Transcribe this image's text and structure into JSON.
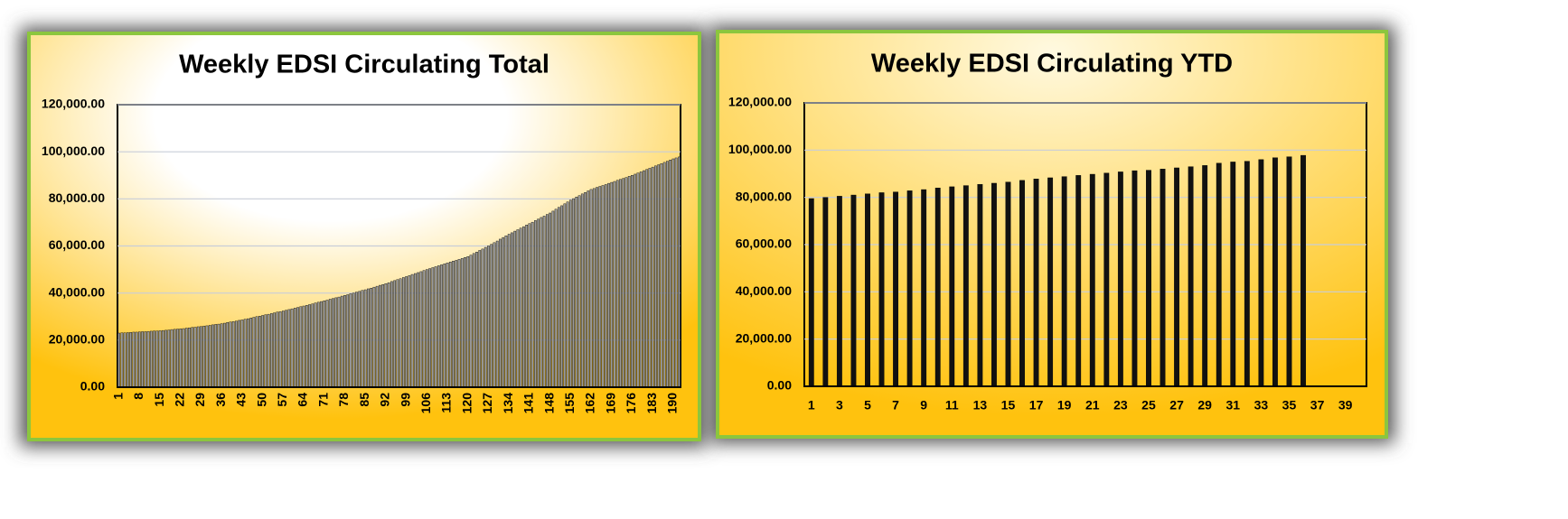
{
  "chart_data": [
    {
      "type": "bar",
      "title": "Weekly EDSI Circulating Total",
      "color": "#9a9a9a",
      "categories": [
        "1",
        null,
        null,
        null,
        null,
        null,
        null,
        "8",
        null,
        null,
        null,
        null,
        null,
        null,
        "15",
        null,
        null,
        null,
        null,
        null,
        null,
        "22",
        null,
        null,
        null,
        null,
        null,
        null,
        "29",
        null,
        null,
        null,
        null,
        null,
        null,
        "36",
        null,
        null,
        null,
        null,
        null,
        null,
        "43",
        null,
        null,
        null,
        null,
        null,
        null,
        "50",
        null,
        null,
        null,
        null,
        null,
        null,
        "57",
        null,
        null,
        null,
        null,
        null,
        null,
        "64",
        null,
        null,
        null,
        null,
        null,
        null,
        "71",
        null,
        null,
        null,
        null,
        null,
        null,
        "78",
        null,
        null,
        null,
        null,
        null,
        null,
        "85",
        null,
        null,
        null,
        null,
        null,
        null,
        "92",
        null,
        null,
        null,
        null,
        null,
        null,
        "99",
        null,
        null,
        null,
        null,
        null,
        null,
        "106",
        null,
        null,
        null,
        null,
        null,
        null,
        "113",
        null,
        null,
        null,
        null,
        null,
        null,
        "120",
        null,
        null,
        null,
        null,
        null,
        null,
        "127",
        null,
        null,
        null,
        null,
        null,
        null,
        "134",
        null,
        null,
        null,
        null,
        null,
        null,
        "141",
        null,
        null,
        null,
        null,
        null,
        null,
        "148",
        null,
        null,
        null,
        null,
        null,
        null,
        "155",
        null,
        null,
        null,
        null,
        null,
        null,
        "162",
        null,
        null,
        null,
        null,
        null,
        null,
        "169",
        null,
        null,
        null,
        null,
        null,
        null,
        "176",
        null,
        null,
        null,
        null,
        null,
        null,
        "183",
        null,
        null,
        null,
        null,
        null,
        null,
        "190",
        null,
        null
      ],
      "values": [
        23000,
        23100,
        23100,
        23200,
        23300,
        23400,
        23400,
        23500,
        23600,
        23600,
        23700,
        23800,
        23900,
        23900,
        24000,
        24100,
        24200,
        24300,
        24500,
        24600,
        24700,
        24800,
        24900,
        25100,
        25200,
        25400,
        25500,
        25700,
        25800,
        26000,
        26100,
        26300,
        26500,
        26700,
        26800,
        27000,
        27200,
        27500,
        27700,
        27900,
        28100,
        28400,
        28600,
        28900,
        29100,
        29400,
        29700,
        30000,
        30200,
        30500,
        30800,
        31000,
        31300,
        31600,
        31900,
        32100,
        32400,
        32700,
        33000,
        33300,
        33600,
        33900,
        34200,
        34500,
        34800,
        35100,
        35400,
        35800,
        36100,
        36400,
        36700,
        37000,
        37400,
        37700,
        38000,
        38300,
        38700,
        39000,
        39300,
        39700,
        40000,
        40400,
        40700,
        41100,
        41400,
        41800,
        42100,
        42500,
        42900,
        43300,
        43600,
        44000,
        44400,
        44900,
        45300,
        45700,
        46100,
        46600,
        47000,
        47400,
        47900,
        48300,
        48700,
        49100,
        49600,
        50000,
        50400,
        50800,
        51200,
        51600,
        52000,
        52400,
        52800,
        53200,
        53600,
        53900,
        54300,
        54700,
        55100,
        55500,
        56100,
        56800,
        57400,
        58100,
        58700,
        59400,
        60000,
        60700,
        61400,
        62100,
        62900,
        63600,
        64300,
        65000,
        65600,
        66300,
        66900,
        67600,
        68200,
        68900,
        69500,
        70100,
        70800,
        71400,
        72100,
        72700,
        73400,
        74000,
        74800,
        75600,
        76400,
        77100,
        77900,
        78700,
        79500,
        80100,
        80800,
        81400,
        82100,
        82700,
        83400,
        84000,
        84400,
        84900,
        85300,
        85700,
        86100,
        86600,
        87000,
        87400,
        87900,
        88300,
        88700,
        89100,
        89600,
        90000,
        90500,
        91000,
        91500,
        92000,
        92500,
        93000,
        93500,
        94000,
        94500,
        95000,
        95500,
        96000,
        96500,
        97000,
        97400,
        97800
      ],
      "ylim": [
        0,
        120000
      ],
      "yticks": [
        {
          "value": 0,
          "label": "0.00"
        },
        {
          "value": 20000,
          "label": "20,000.00"
        },
        {
          "value": 40000,
          "label": "40,000.00"
        },
        {
          "value": 60000,
          "label": "60,000.00"
        },
        {
          "value": 80000,
          "label": "80,000.00"
        },
        {
          "value": 100000,
          "label": "100,000.00"
        },
        {
          "value": 120000,
          "label": "120,000.00"
        }
      ],
      "grid": true
    },
    {
      "type": "bar",
      "title": "Weekly EDSI Circulating YTD",
      "color": "#111111",
      "categories": [
        "1",
        null,
        "3",
        null,
        "5",
        null,
        "7",
        null,
        "9",
        null,
        "11",
        null,
        "13",
        null,
        "15",
        null,
        "17",
        null,
        "19",
        null,
        "21",
        null,
        "23",
        null,
        "25",
        null,
        "27",
        null,
        "29",
        null,
        "31",
        null,
        "33",
        null,
        "35",
        null,
        "37",
        null,
        "39",
        null
      ],
      "values": [
        79500,
        80000,
        80500,
        81000,
        81500,
        82000,
        82300,
        82800,
        83300,
        84000,
        84500,
        85000,
        85500,
        86000,
        86500,
        87200,
        87800,
        88300,
        88800,
        89300,
        89800,
        90300,
        90800,
        91300,
        91500,
        92000,
        92500,
        93000,
        93500,
        94500,
        95000,
        95300,
        96000,
        96800,
        97200,
        97800,
        null,
        null,
        null,
        null
      ],
      "ylim": [
        0,
        120000
      ],
      "yticks": [
        {
          "value": 0,
          "label": "0.00"
        },
        {
          "value": 20000,
          "label": "20,000.00"
        },
        {
          "value": 40000,
          "label": "40,000.00"
        },
        {
          "value": 60000,
          "label": "60,000.00"
        },
        {
          "value": 80000,
          "label": "80,000.00"
        },
        {
          "value": 100000,
          "label": "100,000.00"
        },
        {
          "value": 120000,
          "label": "120,000.00"
        }
      ],
      "grid": true
    }
  ]
}
